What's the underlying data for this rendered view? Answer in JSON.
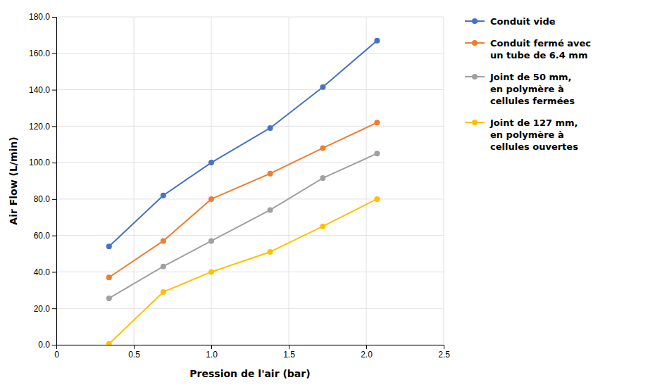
{
  "chart_data": {
    "type": "line",
    "x": [
      0.34,
      0.69,
      1.0,
      1.38,
      1.72,
      2.07
    ],
    "series": [
      {
        "name": "Conduit vide",
        "color": "#4472C4",
        "values": [
          54.0,
          82.0,
          100.0,
          119.0,
          141.5,
          167.0
        ]
      },
      {
        "name": "Conduit fermé avec\nun tube de 6.4 mm",
        "color": "#ED7D31",
        "values": [
          37.0,
          57.0,
          80.0,
          94.0,
          108.0,
          122.0
        ]
      },
      {
        "name": "Joint de 50 mm,\nen polymère à\ncellules fermées",
        "color": "#A0A0A0",
        "values": [
          25.5,
          43.0,
          57.0,
          74.0,
          91.5,
          105.0
        ]
      },
      {
        "name": "Joint de 127 mm,\nen polymère à\ncellules ouvertes",
        "color": "#FFC000",
        "values": [
          0.5,
          29.0,
          40.0,
          51.0,
          65.0,
          80.0
        ]
      }
    ],
    "x_label": "Pression de l'air (bar)",
    "y_label": "Air Flow (L/min)",
    "xlim": [
      0,
      2.5
    ],
    "ylim": [
      0.0,
      180.0
    ],
    "xticks": [
      0,
      0.5,
      {
        "value": 1.0,
        "label": "1.0"
      },
      {
        "value": 1.5,
        "label": "1.5"
      },
      {
        "value": 2.0,
        "label": "2.0"
      },
      {
        "value": 2.5,
        "label": "2.5"
      }
    ],
    "yticks": [
      {
        "value": 0.0,
        "label": "0.0"
      },
      {
        "value": 20.0,
        "label": "20.0"
      },
      {
        "value": 40.0,
        "label": "40.0"
      },
      {
        "value": 60.0,
        "label": "60.0"
      },
      {
        "value": 80.0,
        "label": "80.0"
      },
      {
        "value": 100.0,
        "label": "100.0"
      },
      {
        "value": 120.0,
        "label": "120.0"
      },
      {
        "value": 140.0,
        "label": "140.0"
      },
      {
        "value": 160.0,
        "label": "160.0"
      },
      {
        "value": 180.0,
        "label": "180.0"
      }
    ],
    "marker": "circle",
    "grid": true,
    "legend": "right"
  }
}
